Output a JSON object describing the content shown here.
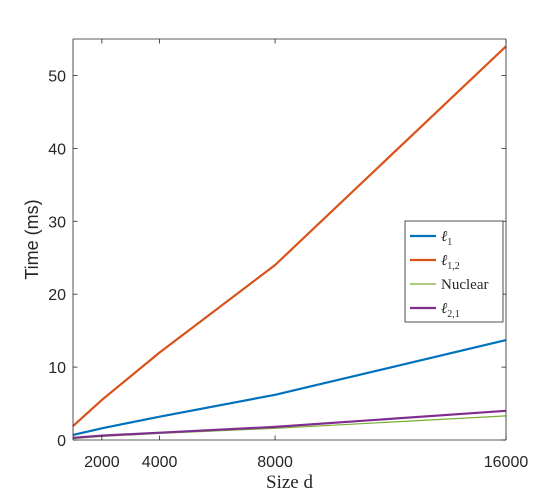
{
  "chart_data": {
    "type": "line",
    "xlabel": "Size d",
    "ylabel": "Time (ms)",
    "xlim": [
      1000,
      16000
    ],
    "ylim": [
      0,
      55
    ],
    "x_ticks": [
      2000,
      4000,
      8000,
      16000
    ],
    "y_ticks": [
      0,
      10,
      20,
      30,
      40,
      50
    ],
    "grid": false,
    "legend_position": "right",
    "x": [
      1000,
      2000,
      4000,
      8000,
      16000
    ],
    "series": [
      {
        "name": "ℓ",
        "sub": "1",
        "color": "#0072BD",
        "width": 2.2,
        "values": [
          0.7,
          1.6,
          3.2,
          6.2,
          13.7
        ]
      },
      {
        "name": "ℓ",
        "sub": "1,2",
        "color": "#D95319",
        "width": 2.2,
        "values": [
          1.9,
          5.5,
          12.0,
          24.0,
          54.0
        ]
      },
      {
        "name": "Nuclear",
        "sub": "",
        "color": "#77AC30",
        "width": 1.2,
        "values": [
          0.2,
          0.5,
          0.9,
          1.6,
          3.3
        ]
      },
      {
        "name": "ℓ",
        "sub": "2,1",
        "color": "#7E2F8E",
        "width": 2.2,
        "values": [
          0.3,
          0.6,
          1.0,
          1.8,
          4.0
        ]
      }
    ]
  }
}
